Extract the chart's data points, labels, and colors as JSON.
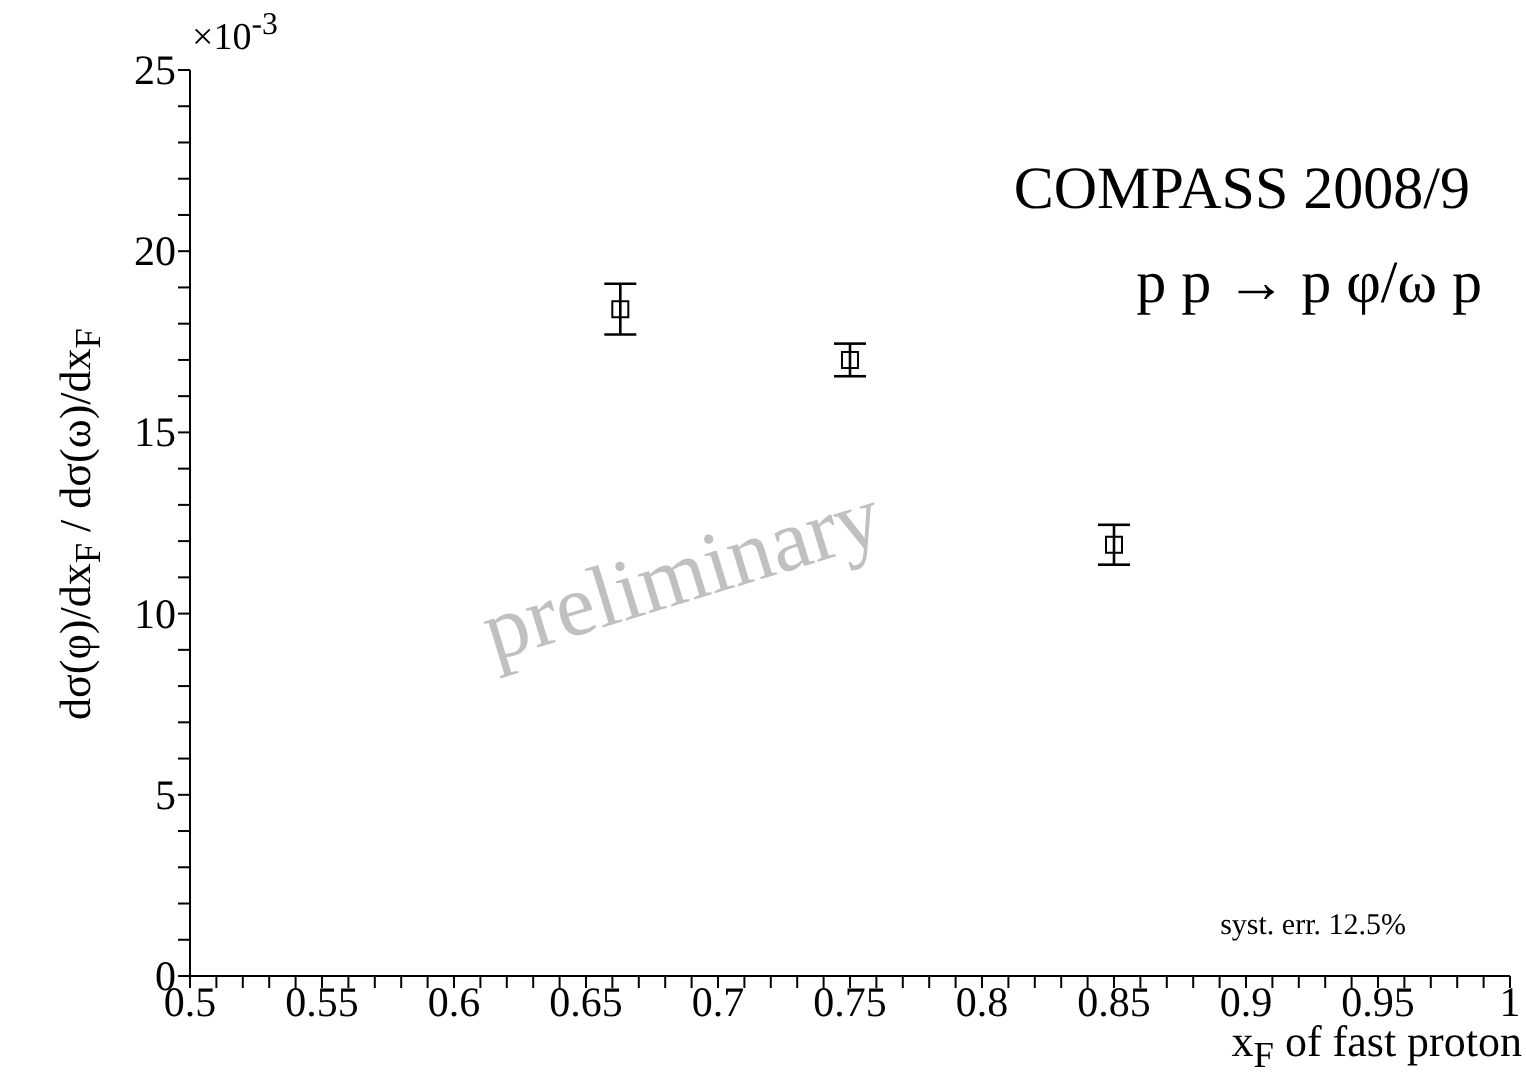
{
  "chart_data": {
    "type": "scatter",
    "xlabel": "x$_{F}$ of fast proton",
    "ylabel": "dσ(φ)/dx$_{F}$ / dσ(ω)/dx$_{F}$",
    "annotations": [
      "×10$^{-3}$",
      "COMPASS 2008/9",
      "p p → p φ/ω p",
      "preliminary",
      "syst. err. 12.5%"
    ],
    "x": [
      0.663,
      0.75,
      0.85
    ],
    "values": [
      18.4,
      17.0,
      11.9
    ],
    "errors": [
      0.7,
      0.45,
      0.55
    ],
    "color": "#000000",
    "marker": "square",
    "xlim": [
      0.5,
      1
    ],
    "xticks": [
      0.5,
      {
        "value": 0.51,
        "label": null
      },
      {
        "value": 0.52,
        "label": null
      },
      {
        "value": 0.53,
        "label": null
      },
      {
        "value": 0.54,
        "label": null
      },
      0.55,
      {
        "value": 0.56,
        "label": null
      },
      {
        "value": 0.57,
        "label": null
      },
      {
        "value": 0.58,
        "label": null
      },
      {
        "value": 0.59,
        "label": null
      },
      0.6,
      {
        "value": 0.61,
        "label": null
      },
      {
        "value": 0.62,
        "label": null
      },
      {
        "value": 0.63,
        "label": null
      },
      {
        "value": 0.64,
        "label": null
      },
      0.65,
      {
        "value": 0.66,
        "label": null
      },
      {
        "value": 0.67,
        "label": null
      },
      {
        "value": 0.68,
        "label": null
      },
      {
        "value": 0.69,
        "label": null
      },
      0.7,
      {
        "value": 0.71,
        "label": null
      },
      {
        "value": 0.72,
        "label": null
      },
      {
        "value": 0.73,
        "label": null
      },
      {
        "value": 0.74,
        "label": null
      },
      0.75,
      {
        "value": 0.76,
        "label": null
      },
      {
        "value": 0.77,
        "label": null
      },
      {
        "value": 0.78,
        "label": null
      },
      {
        "value": 0.79,
        "label": null
      },
      0.8,
      {
        "value": 0.81,
        "label": null
      },
      {
        "value": 0.82,
        "label": null
      },
      {
        "value": 0.83,
        "label": null
      },
      {
        "value": 0.84,
        "label": null
      },
      0.85,
      {
        "value": 0.86,
        "label": null
      },
      {
        "value": 0.87,
        "label": null
      },
      {
        "value": 0.88,
        "label": null
      },
      {
        "value": 0.89,
        "label": null
      },
      0.9,
      {
        "value": 0.91,
        "label": null
      },
      {
        "value": 0.92,
        "label": null
      },
      {
        "value": 0.93,
        "label": null
      },
      {
        "value": 0.94,
        "label": null
      },
      0.95,
      {
        "value": 0.96,
        "label": null
      },
      {
        "value": 0.97,
        "label": null
      },
      {
        "value": 0.98,
        "label": null
      },
      {
        "value": 0.99,
        "label": null
      },
      1
    ],
    "ylim": [
      0,
      25
    ],
    "yticks": [
      0,
      {
        "value": 1,
        "label": null
      },
      {
        "value": 2,
        "label": null
      },
      {
        "value": 3,
        "label": null
      },
      {
        "value": 4,
        "label": null
      },
      5,
      {
        "value": 6,
        "label": null
      },
      {
        "value": 7,
        "label": null
      },
      {
        "value": 8,
        "label": null
      },
      {
        "value": 9,
        "label": null
      },
      10,
      {
        "value": 11,
        "label": null
      },
      {
        "value": 12,
        "label": null
      },
      {
        "value": 13,
        "label": null
      },
      {
        "value": 14,
        "label": null
      },
      15,
      {
        "value": 16,
        "label": null
      },
      {
        "value": 17,
        "label": null
      },
      {
        "value": 18,
        "label": null
      },
      {
        "value": 19,
        "label": null
      },
      20,
      {
        "value": 21,
        "label": null
      },
      {
        "value": 22,
        "label": null
      },
      {
        "value": 23,
        "label": null
      },
      {
        "value": 24,
        "label": null
      },
      25
    ]
  }
}
